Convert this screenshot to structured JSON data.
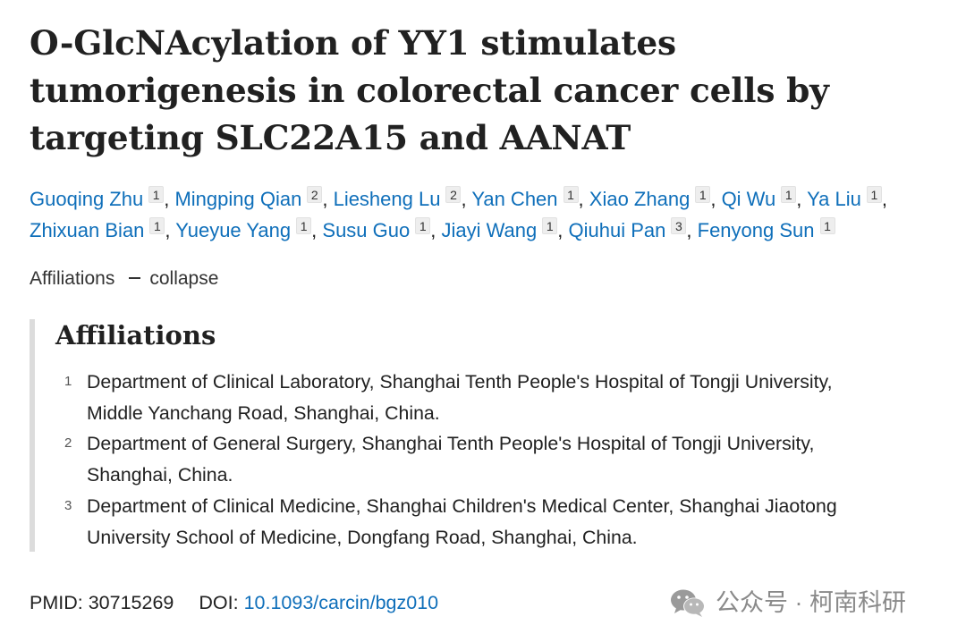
{
  "title": "O-GlcNAcylation of YY1 stimulates tumorigenesis in colorectal cancer cells by targeting SLC22A15 and AANAT",
  "authors": [
    {
      "name": "Guoqing Zhu",
      "aff": "1"
    },
    {
      "name": "Mingping Qian",
      "aff": "2"
    },
    {
      "name": "Liesheng Lu",
      "aff": "2"
    },
    {
      "name": "Yan Chen",
      "aff": "1"
    },
    {
      "name": "Xiao Zhang",
      "aff": "1"
    },
    {
      "name": "Qi Wu",
      "aff": "1"
    },
    {
      "name": "Ya Liu",
      "aff": "1"
    },
    {
      "name": "Zhixuan Bian",
      "aff": "1"
    },
    {
      "name": "Yueyue Yang",
      "aff": "1"
    },
    {
      "name": "Susu Guo",
      "aff": "1"
    },
    {
      "name": "Jiayi Wang",
      "aff": "1"
    },
    {
      "name": "Qiuhui Pan",
      "aff": "3"
    },
    {
      "name": "Fenyong Sun",
      "aff": "1"
    }
  ],
  "separator": ",",
  "affiliations_toggle": {
    "label": "Affiliations",
    "action": "collapse"
  },
  "affiliations": {
    "heading": "Affiliations",
    "items": [
      {
        "num": "1",
        "lines": [
          "Department of Clinical Laboratory, Shanghai Tenth People's Hospital of Tongji University,",
          "Middle Yanchang Road, Shanghai, China."
        ]
      },
      {
        "num": "2",
        "lines": [
          "Department of General Surgery, Shanghai Tenth People's Hospital of Tongji University,",
          "Shanghai, China."
        ]
      },
      {
        "num": "3",
        "lines": [
          "Department of Clinical Medicine, Shanghai Children's Medical Center, Shanghai Jiaotong",
          "University School of Medicine, Dongfang Road, Shanghai, China."
        ]
      }
    ]
  },
  "ids": {
    "pmid_label": "PMID:",
    "pmid": "30715269",
    "doi_label": "DOI:",
    "doi": "10.1093/carcin/bgz010"
  },
  "watermark": {
    "text": "公众号 · 柯南科研",
    "icon": "wechat-icon"
  },
  "colors": {
    "link": "#0f6fba",
    "text": "#212121",
    "panel_border": "#dcdcdc",
    "watermark": "#8a8a8a"
  }
}
